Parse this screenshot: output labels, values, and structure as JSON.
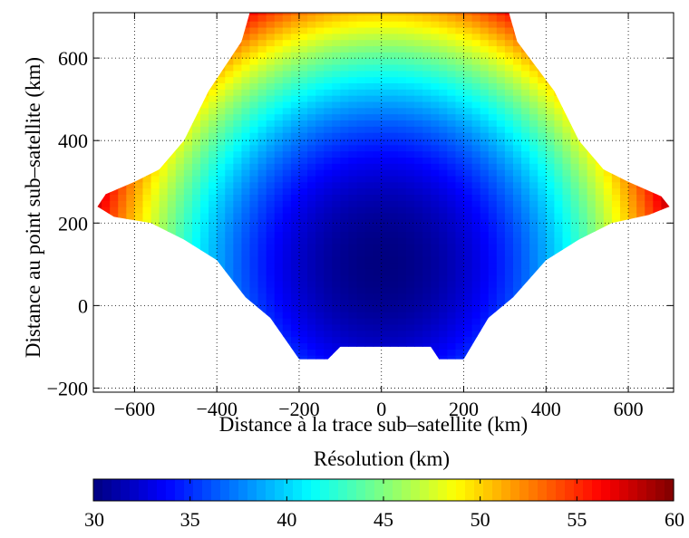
{
  "chart_data": {
    "type": "heatmap",
    "title": "",
    "xlabel": "Distance à la trace sub–satellite (km)",
    "ylabel": "Distance au point sub–satellite (km)",
    "xlim": [
      -700,
      710
    ],
    "ylim": [
      -210,
      710
    ],
    "xticks": [
      -600,
      -400,
      -200,
      0,
      200,
      400,
      600
    ],
    "xtick_labels": [
      "−600",
      "−400",
      "−200",
      "0",
      "200",
      "400",
      "600"
    ],
    "yticks": [
      -200,
      0,
      200,
      400,
      600
    ],
    "ytick_labels": [
      "−200",
      "0",
      "200",
      "400",
      "600"
    ],
    "grid": true,
    "resolution_field": {
      "center_x_km": 0,
      "center_y_km": 100,
      "min_value": 30,
      "max_value": 60,
      "cell_width_km": 20,
      "cell_height_km": 15
    },
    "footprint_outline": [
      [
        -320,
        710
      ],
      [
        310,
        710
      ],
      [
        330,
        640
      ],
      [
        420,
        520
      ],
      [
        480,
        400
      ],
      [
        540,
        330
      ],
      [
        600,
        300
      ],
      [
        680,
        265
      ],
      [
        700,
        240
      ],
      [
        650,
        220
      ],
      [
        560,
        200
      ],
      [
        480,
        160
      ],
      [
        400,
        110
      ],
      [
        320,
        20
      ],
      [
        260,
        -30
      ],
      [
        200,
        -130
      ],
      [
        140,
        -130
      ],
      [
        120,
        -100
      ],
      [
        -100,
        -100
      ],
      [
        -130,
        -130
      ],
      [
        -200,
        -130
      ],
      [
        -270,
        -30
      ],
      [
        -330,
        20
      ],
      [
        -400,
        110
      ],
      [
        -480,
        160
      ],
      [
        -560,
        200
      ],
      [
        -650,
        215
      ],
      [
        -690,
        240
      ],
      [
        -670,
        270
      ],
      [
        -600,
        300
      ],
      [
        -540,
        330
      ],
      [
        -480,
        400
      ],
      [
        -420,
        520
      ],
      [
        -340,
        640
      ]
    ],
    "colorbar": {
      "label": "Résolution (km)",
      "min": 30,
      "max": 60,
      "ticks": [
        30,
        35,
        40,
        45,
        50,
        55,
        60
      ],
      "tick_labels": [
        "30",
        "35",
        "40",
        "45",
        "50",
        "55",
        "60"
      ],
      "colormap": "jet"
    }
  }
}
